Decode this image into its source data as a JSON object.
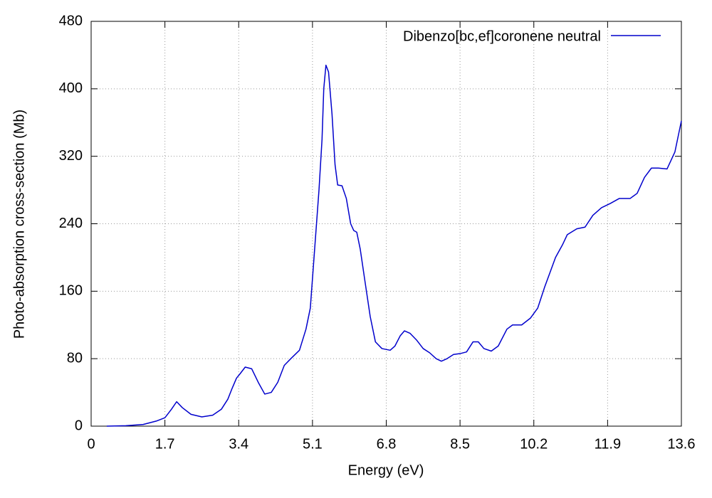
{
  "chart_data": {
    "type": "line",
    "xlabel": "Energy (eV)",
    "ylabel": "Photo-absorption cross-section (Mb)",
    "xlim": [
      0,
      13.6
    ],
    "xticks": [
      0,
      1.7,
      3.4,
      5.1,
      6.8,
      8.5,
      10.2,
      11.9,
      13.6
    ],
    "ylim": [
      0,
      480
    ],
    "yticks": [
      0,
      80,
      160,
      240,
      320,
      400,
      480
    ],
    "grid": true,
    "legend": "upper right",
    "x": [
      0.36,
      0.8,
      1.2,
      1.5,
      1.7,
      1.85,
      1.97,
      2.1,
      2.3,
      2.55,
      2.8,
      3.0,
      3.15,
      3.25,
      3.35,
      3.43,
      3.55,
      3.7,
      3.85,
      4.0,
      4.15,
      4.3,
      4.45,
      4.6,
      4.8,
      4.95,
      5.05,
      5.15,
      5.25,
      5.32,
      5.36,
      5.41,
      5.47,
      5.55,
      5.62,
      5.68,
      5.78,
      5.88,
      5.98,
      6.05,
      6.12,
      6.2,
      6.3,
      6.43,
      6.55,
      6.7,
      6.89,
      7.0,
      7.12,
      7.22,
      7.35,
      7.5,
      7.65,
      7.8,
      7.95,
      8.07,
      8.2,
      8.35,
      8.5,
      8.65,
      8.8,
      8.92,
      9.05,
      9.22,
      9.38,
      9.58,
      9.71,
      9.92,
      10.12,
      10.29,
      10.45,
      10.7,
      10.86,
      10.97,
      11.19,
      11.38,
      11.56,
      11.76,
      11.96,
      12.17,
      12.42,
      12.58,
      12.75,
      12.91,
      13.07,
      13.27,
      13.45,
      13.6
    ],
    "series": [
      {
        "name": "Dibenzo[bc,ef]coronene neutral",
        "color": "#0000cc",
        "values": [
          0,
          0.5,
          2,
          6,
          10,
          20,
          29,
          22,
          14,
          11,
          13,
          20,
          32,
          45,
          57,
          62,
          70,
          68,
          52,
          38,
          40,
          52,
          72,
          80,
          90,
          115,
          140,
          210,
          280,
          340,
          400,
          428,
          420,
          370,
          310,
          286,
          285,
          270,
          240,
          232,
          230,
          210,
          175,
          130,
          100,
          92,
          90,
          95,
          107,
          113,
          110,
          102,
          92,
          87,
          80,
          77,
          80,
          85,
          86,
          88,
          100,
          100,
          92,
          89,
          95,
          115,
          120,
          120,
          128,
          140,
          165,
          200,
          215,
          227,
          234,
          236,
          250,
          259,
          264,
          270,
          270,
          276,
          295,
          306,
          306,
          305,
          325,
          362
        ]
      }
    ]
  }
}
